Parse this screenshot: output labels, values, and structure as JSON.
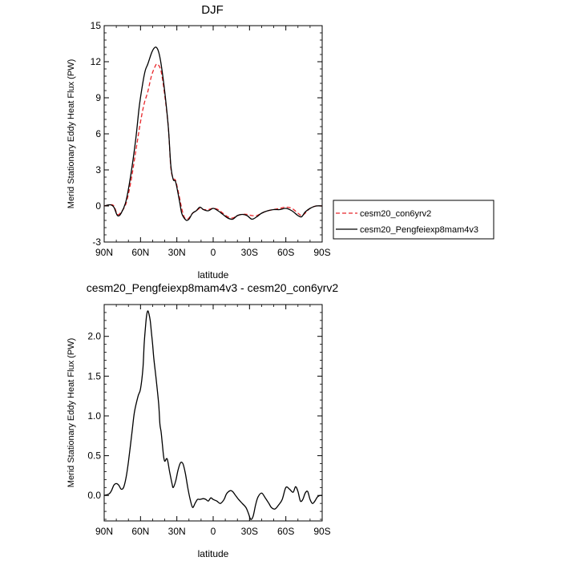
{
  "chart_data": [
    {
      "type": "line",
      "title": "DJF",
      "xlabel": "latitude",
      "ylabel": "Merid Stationary Eddy Heat Flux (PW)",
      "xlim": [
        90,
        -90
      ],
      "ylim": [
        -3,
        15
      ],
      "x_ticks": [
        90,
        60,
        30,
        0,
        -30,
        -60,
        -90
      ],
      "x_tick_labels": [
        "90N",
        "60N",
        "30N",
        "0",
        "30S",
        "60S",
        "90S"
      ],
      "y_ticks": [
        -3,
        0,
        3,
        6,
        9,
        12,
        15
      ],
      "y_tick_labels": [
        "-3",
        "0",
        "3",
        "6",
        "9",
        "12",
        "15"
      ],
      "legend": "right",
      "series": [
        {
          "name": "cesm20_con6yrv2",
          "color": "#e8262a",
          "dash": "dashed",
          "x": [
            90,
            85,
            82,
            79,
            76,
            72,
            68,
            64,
            60,
            57,
            54,
            51,
            48,
            46,
            43,
            40,
            37,
            35,
            33,
            31,
            28,
            26,
            24,
            22,
            20,
            17,
            14,
            11,
            8,
            4,
            0,
            -4,
            -8,
            -12,
            -16,
            -20,
            -24,
            -28,
            -32,
            -36,
            -40,
            -45,
            -50,
            -55,
            -60,
            -65,
            -70,
            -73,
            -76,
            -80,
            -85,
            -90
          ],
          "y": [
            0,
            0.1,
            0,
            -0.7,
            -0.5,
            0.2,
            2.0,
            4.5,
            7.0,
            8.5,
            9.5,
            10.8,
            11.6,
            11.8,
            11.2,
            9.2,
            6.5,
            3.2,
            2.3,
            2.1,
            0.8,
            -0.2,
            -0.9,
            -1.1,
            -1.0,
            -0.6,
            -0.4,
            -0.2,
            -0.3,
            -0.3,
            -0.2,
            -0.3,
            -0.6,
            -0.9,
            -1.0,
            -0.8,
            -0.7,
            -0.7,
            -0.8,
            -0.8,
            -0.6,
            -0.4,
            -0.3,
            -0.2,
            -0.1,
            -0.2,
            -0.6,
            -0.8,
            -0.6,
            -0.2,
            0,
            0
          ]
        },
        {
          "name": "cesm20_Pengfeiexp8mam4v3",
          "color": "#000000",
          "dash": "solid",
          "x": [
            90,
            85,
            82,
            79,
            76,
            72,
            68,
            64,
            61,
            58,
            56,
            54,
            51,
            49,
            47,
            45,
            43,
            40,
            37,
            35,
            33,
            31,
            28,
            26,
            24,
            22,
            20,
            17,
            14,
            11,
            8,
            4,
            0,
            -4,
            -8,
            -12,
            -16,
            -20,
            -24,
            -28,
            -32,
            -36,
            -40,
            -45,
            -50,
            -55,
            -60,
            -65,
            -70,
            -73,
            -76,
            -80,
            -85,
            -90
          ],
          "y": [
            0,
            0.1,
            -0.1,
            -0.8,
            -0.6,
            0.4,
            2.6,
            5.5,
            8.3,
            10.3,
            11.3,
            11.8,
            12.7,
            13.1,
            13.2,
            12.8,
            11.8,
            9.5,
            6.5,
            3.4,
            2.2,
            2.0,
            0.5,
            -0.6,
            -1.0,
            -1.2,
            -1.1,
            -0.6,
            -0.4,
            -0.1,
            -0.3,
            -0.4,
            -0.2,
            -0.4,
            -0.7,
            -1.0,
            -1.1,
            -0.8,
            -0.7,
            -0.8,
            -1.1,
            -0.9,
            -0.6,
            -0.4,
            -0.3,
            -0.3,
            -0.2,
            -0.4,
            -0.8,
            -0.9,
            -0.5,
            -0.2,
            0,
            0
          ]
        }
      ]
    },
    {
      "type": "line",
      "title": "cesm20_Pengfeiexp8mam4v3 - cesm20_con6yrv2",
      "xlabel": "latitude",
      "ylabel": "Merid Stationary Eddy Heat Flux (PW)",
      "xlim": [
        90,
        -90
      ],
      "ylim": [
        -0.32,
        2.4
      ],
      "x_ticks": [
        90,
        60,
        30,
        0,
        -30,
        -60,
        -90
      ],
      "x_tick_labels": [
        "90N",
        "60N",
        "30N",
        "0",
        "30S",
        "60S",
        "90S"
      ],
      "y_ticks": [
        0,
        0.5,
        1,
        1.5,
        2
      ],
      "y_tick_labels": [
        "0.0",
        "0.5",
        "1.0",
        "1.5",
        "2.0"
      ],
      "series": [
        {
          "color": "#000000",
          "dash": "solid",
          "x": [
            90,
            86,
            84,
            82,
            80,
            78,
            76,
            74,
            72,
            70,
            67,
            65,
            62,
            60,
            58,
            57,
            56,
            55,
            54,
            53,
            52,
            51,
            50,
            49,
            47,
            45,
            44,
            43,
            42,
            41,
            40,
            38,
            36,
            34,
            33,
            31,
            29,
            27,
            25,
            23,
            21,
            19,
            17,
            15,
            13,
            11,
            8,
            6,
            4,
            2,
            0,
            -3,
            -6,
            -9,
            -11,
            -14,
            -16,
            -18,
            -21,
            -24,
            -27,
            -29,
            -31,
            -33,
            -35,
            -37,
            -40,
            -43,
            -46,
            -48,
            -51,
            -54,
            -57,
            -60,
            -63,
            -66,
            -68,
            -70,
            -72,
            -74,
            -76,
            -78,
            -80,
            -82,
            -84,
            -86,
            -88,
            -90
          ],
          "y": [
            0,
            0.02,
            0.06,
            0.13,
            0.15,
            0.13,
            0.08,
            0.1,
            0.22,
            0.42,
            0.8,
            1.05,
            1.25,
            1.34,
            1.6,
            1.9,
            2.1,
            2.26,
            2.32,
            2.28,
            2.2,
            2.05,
            1.9,
            1.72,
            1.45,
            1.15,
            0.9,
            0.8,
            0.65,
            0.5,
            0.43,
            0.46,
            0.3,
            0.15,
            0.1,
            0.18,
            0.32,
            0.41,
            0.4,
            0.28,
            0.1,
            -0.05,
            -0.15,
            -0.1,
            -0.05,
            -0.05,
            -0.04,
            -0.05,
            -0.07,
            -0.03,
            -0.05,
            -0.07,
            -0.1,
            -0.05,
            0.02,
            0.06,
            0.05,
            0.01,
            -0.05,
            -0.1,
            -0.15,
            -0.22,
            -0.3,
            -0.26,
            -0.12,
            -0.02,
            0.03,
            -0.03,
            -0.1,
            -0.15,
            -0.17,
            -0.12,
            -0.05,
            0.1,
            0.08,
            0.04,
            0.11,
            0.05,
            -0.07,
            -0.05,
            0.03,
            0.05,
            -0.05,
            -0.1,
            -0.07,
            -0.02,
            0,
            0
          ]
        }
      ]
    }
  ]
}
